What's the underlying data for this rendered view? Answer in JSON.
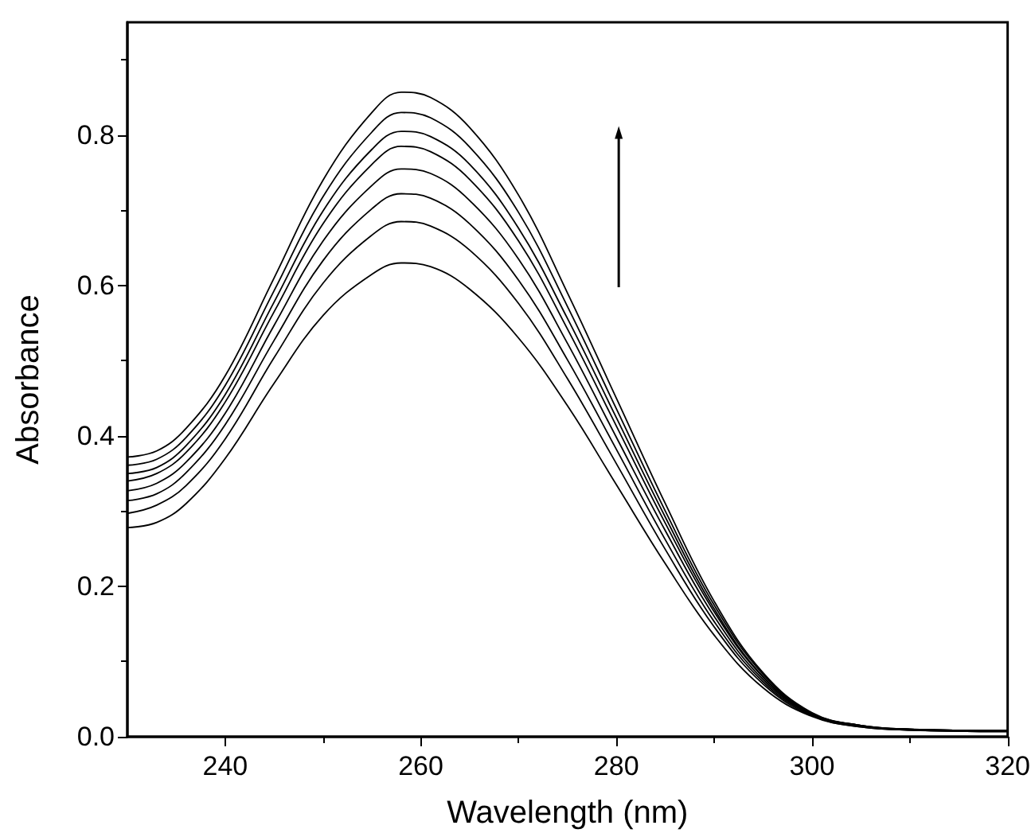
{
  "chart_data": {
    "type": "line",
    "xlabel": "Wavelength (nm)",
    "ylabel": "Absorbance",
    "xlim": [
      230,
      320
    ],
    "xticks": [
      240,
      260,
      280,
      300,
      320
    ],
    "ylim": [
      0,
      0.95
    ],
    "yticks": [
      {
        "value": 0,
        "label": "0.0"
      },
      {
        "value": 0.2,
        "label": "0.2"
      },
      {
        "value": 0.4,
        "label": "0.4"
      },
      {
        "value": 0.6,
        "label": "0.6"
      },
      {
        "value": 0.8,
        "label": "0.8"
      }
    ],
    "grid": false,
    "marker": "none",
    "line_style": "solid",
    "x": [
      230,
      233,
      236,
      240,
      245,
      250,
      255,
      258,
      261,
      265,
      270,
      275,
      280,
      285,
      290,
      295,
      300,
      305,
      310,
      320
    ],
    "series": [
      {
        "color": "#000000",
        "values": [
          0.278,
          0.285,
          0.31,
          0.37,
          0.47,
          0.56,
          0.615,
          0.63,
          0.625,
          0.595,
          0.53,
          0.44,
          0.335,
          0.23,
          0.135,
          0.065,
          0.027,
          0.013,
          0.009,
          0.007
        ]
      },
      {
        "color": "#000000",
        "values": [
          0.297,
          0.308,
          0.334,
          0.396,
          0.504,
          0.603,
          0.667,
          0.685,
          0.679,
          0.647,
          0.576,
          0.476,
          0.363,
          0.249,
          0.146,
          0.07,
          0.028,
          0.013,
          0.009,
          0.007
        ]
      },
      {
        "color": "#000000",
        "values": [
          0.314,
          0.323,
          0.351,
          0.415,
          0.527,
          0.633,
          0.702,
          0.722,
          0.716,
          0.682,
          0.607,
          0.501,
          0.382,
          0.262,
          0.153,
          0.073,
          0.029,
          0.014,
          0.009,
          0.007
        ]
      },
      {
        "color": "#000000",
        "values": [
          0.327,
          0.337,
          0.365,
          0.43,
          0.547,
          0.659,
          0.733,
          0.755,
          0.749,
          0.713,
          0.635,
          0.523,
          0.398,
          0.274,
          0.16,
          0.076,
          0.03,
          0.014,
          0.01,
          0.008
        ]
      },
      {
        "color": "#000000",
        "values": [
          0.34,
          0.35,
          0.378,
          0.445,
          0.565,
          0.682,
          0.761,
          0.785,
          0.778,
          0.741,
          0.659,
          0.542,
          0.413,
          0.284,
          0.166,
          0.079,
          0.03,
          0.014,
          0.01,
          0.008
        ]
      },
      {
        "color": "#000000",
        "values": [
          0.35,
          0.358,
          0.387,
          0.455,
          0.578,
          0.699,
          0.781,
          0.805,
          0.798,
          0.761,
          0.676,
          0.556,
          0.424,
          0.292,
          0.17,
          0.08,
          0.031,
          0.015,
          0.01,
          0.008
        ]
      },
      {
        "color": "#000000",
        "values": [
          0.361,
          0.369,
          0.398,
          0.467,
          0.593,
          0.718,
          0.804,
          0.83,
          0.823,
          0.784,
          0.697,
          0.572,
          0.436,
          0.3,
          0.175,
          0.083,
          0.031,
          0.015,
          0.01,
          0.008
        ]
      },
      {
        "color": "#000000",
        "values": [
          0.372,
          0.38,
          0.41,
          0.48,
          0.61,
          0.74,
          0.83,
          0.857,
          0.85,
          0.81,
          0.72,
          0.59,
          0.45,
          0.31,
          0.18,
          0.085,
          0.032,
          0.015,
          0.01,
          0.008
        ]
      }
    ]
  }
}
